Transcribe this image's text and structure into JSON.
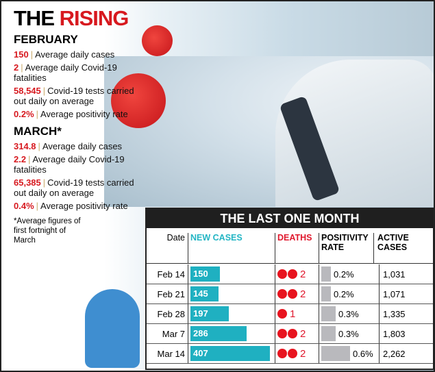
{
  "title": {
    "part1": "THE",
    "part2": "RISING"
  },
  "february": {
    "heading": "FEBRUARY",
    "stats": [
      {
        "value": "150",
        "label": "Average daily cases"
      },
      {
        "value": "2",
        "label": "Average daily Covid-19 fatalities"
      },
      {
        "value": "58,545",
        "label": "Covid-19 tests carried out daily on average"
      },
      {
        "value": "0.2%",
        "label": "Average positivity rate"
      }
    ]
  },
  "march": {
    "heading": "MARCH*",
    "stats": [
      {
        "value": "314.8",
        "label": "Average daily cases"
      },
      {
        "value": "2.2",
        "label": "Average daily Covid-19 fatalities"
      },
      {
        "value": "65,385",
        "label": "Covid-19 tests carried out daily on average"
      },
      {
        "value": "0.4%",
        "label": "Average positivity rate"
      }
    ]
  },
  "footnote": "*Average figures of first fortnight of March",
  "chart_data": {
    "type": "table",
    "title": "THE LAST ONE MONTH",
    "columns": [
      "Date",
      "NEW CASES",
      "DEATHS",
      "POSITIVITY RATE",
      "ACTIVE CASES"
    ],
    "rows": [
      {
        "date": "Feb 14",
        "new_cases": 150,
        "deaths": 2,
        "positivity": "0.2%",
        "positivity_value": 0.2,
        "active": "1,031"
      },
      {
        "date": "Feb 21",
        "new_cases": 145,
        "deaths": 2,
        "positivity": "0.2%",
        "positivity_value": 0.2,
        "active": "1,071"
      },
      {
        "date": "Feb 28",
        "new_cases": 197,
        "deaths": 1,
        "positivity": "0.3%",
        "positivity_value": 0.3,
        "active": "1,335"
      },
      {
        "date": "Mar 7",
        "new_cases": 286,
        "deaths": 2,
        "positivity": "0.3%",
        "positivity_value": 0.3,
        "active": "1,803"
      },
      {
        "date": "Mar 14",
        "new_cases": 407,
        "deaths": 2,
        "positivity": "0.6%",
        "positivity_value": 0.6,
        "active": "2,262"
      }
    ],
    "colors": {
      "new_cases": "#1fb0c1",
      "deaths": "#e8141f",
      "positivity": "#b9b9bd",
      "accent": "#d7191f"
    }
  }
}
